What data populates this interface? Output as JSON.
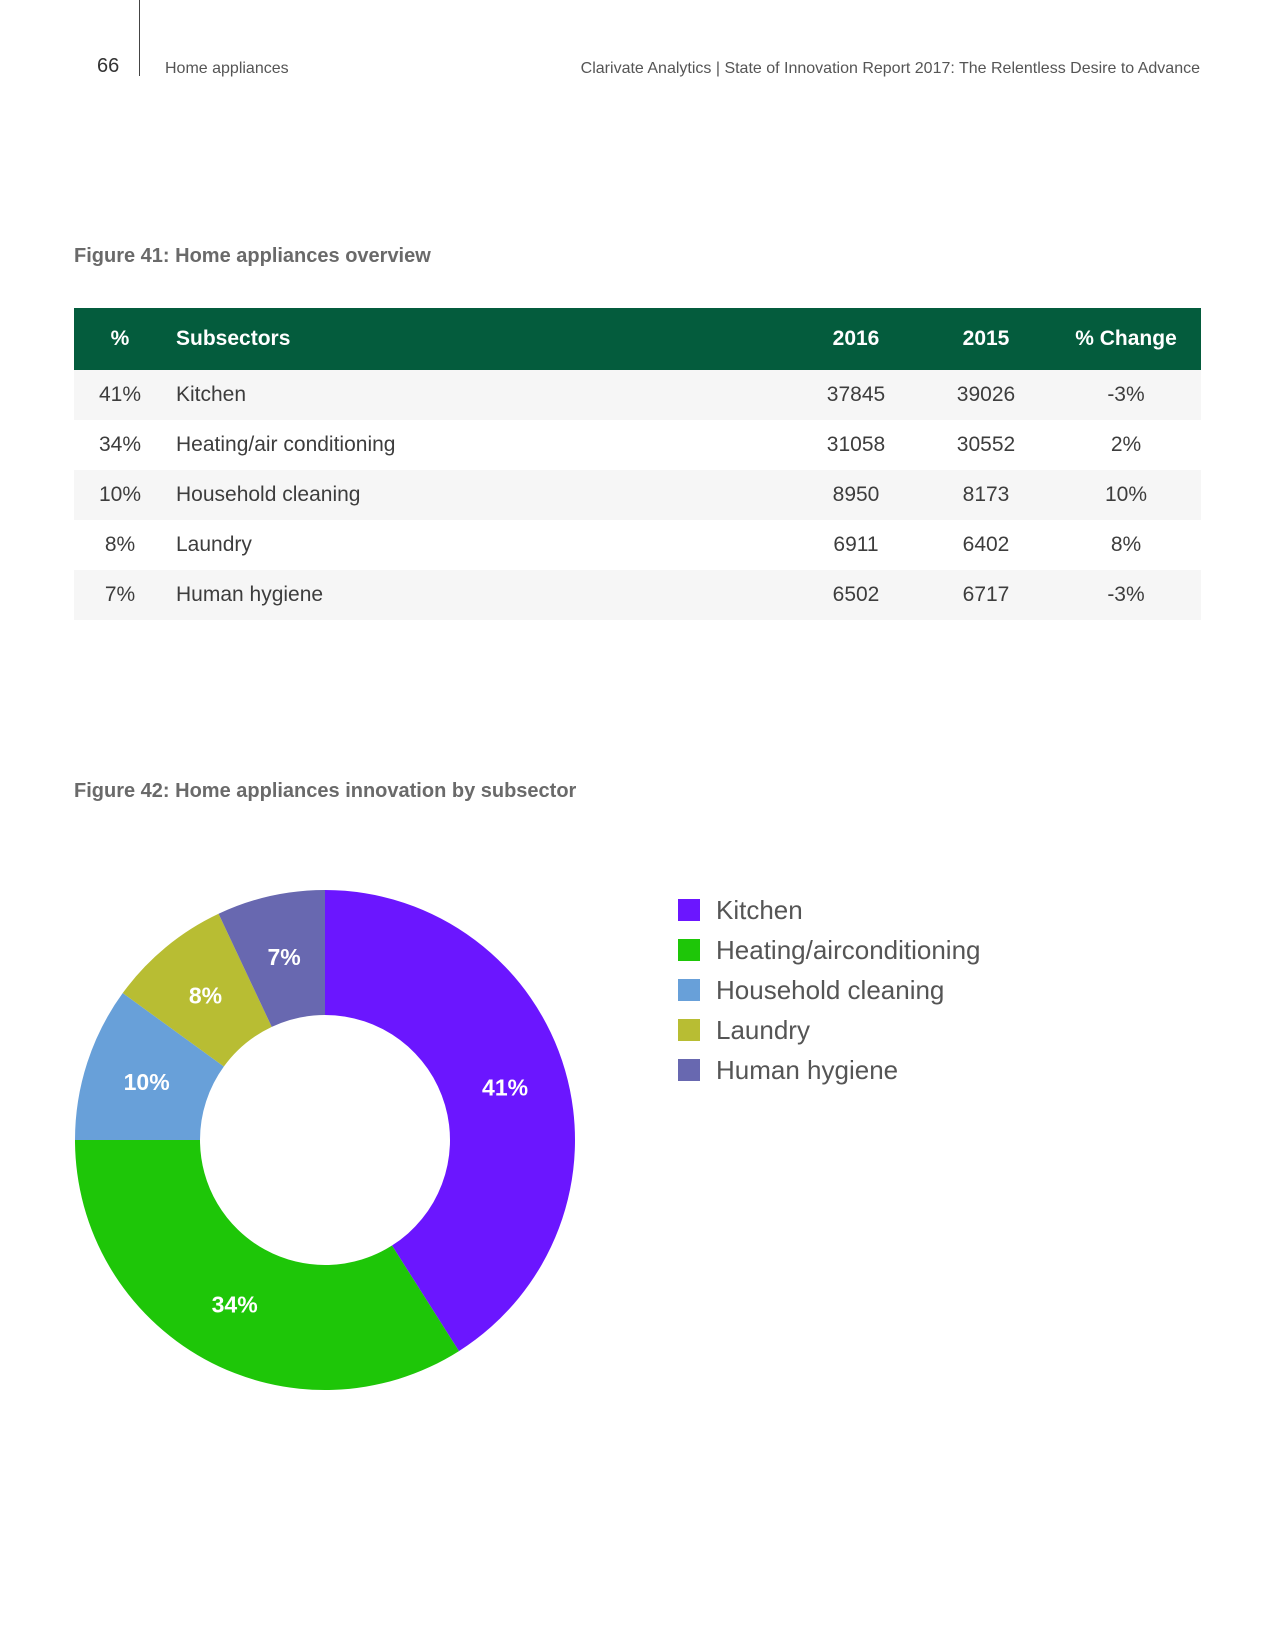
{
  "header": {
    "page_number": "66",
    "section": "Home appliances",
    "report_title": "Clarivate Analytics | State of Innovation Report 2017: The Relentless Desire to Advance"
  },
  "figure41": {
    "title": "Figure 41: Home appliances overview",
    "columns": [
      "%",
      "Subsectors",
      "2016",
      "2015",
      "% Change"
    ],
    "rows": [
      {
        "pct": "41%",
        "name": "Kitchen",
        "y2016": "37845",
        "y2015": "39026",
        "change": "-3%"
      },
      {
        "pct": "34%",
        "name": "Heating/air conditioning",
        "y2016": "31058",
        "y2015": "30552",
        "change": "2%"
      },
      {
        "pct": "10%",
        "name": "Household cleaning",
        "y2016": "8950",
        "y2015": "8173",
        "change": "10%"
      },
      {
        "pct": "8%",
        "name": "Laundry",
        "y2016": "6911",
        "y2015": "6402",
        "change": "8%"
      },
      {
        "pct": "7%",
        "name": "Human hygiene",
        "y2016": "6502",
        "y2015": "6717",
        "change": "-3%"
      }
    ]
  },
  "figure42": {
    "title": "Figure 42: Home appliances innovation by subsector"
  },
  "chart_data": {
    "type": "pie",
    "donut": true,
    "categories": [
      "Kitchen",
      "Heating/airconditioning",
      "Household cleaning",
      "Laundry",
      "Human hygiene"
    ],
    "values": [
      41,
      34,
      10,
      8,
      7
    ],
    "labels": [
      "41%",
      "34%",
      "10%",
      "8%",
      "7%"
    ],
    "colors": [
      "#6b16ff",
      "#1ec608",
      "#68a0d9",
      "#b8bd33",
      "#6868b0"
    ],
    "legend_position": "right"
  }
}
